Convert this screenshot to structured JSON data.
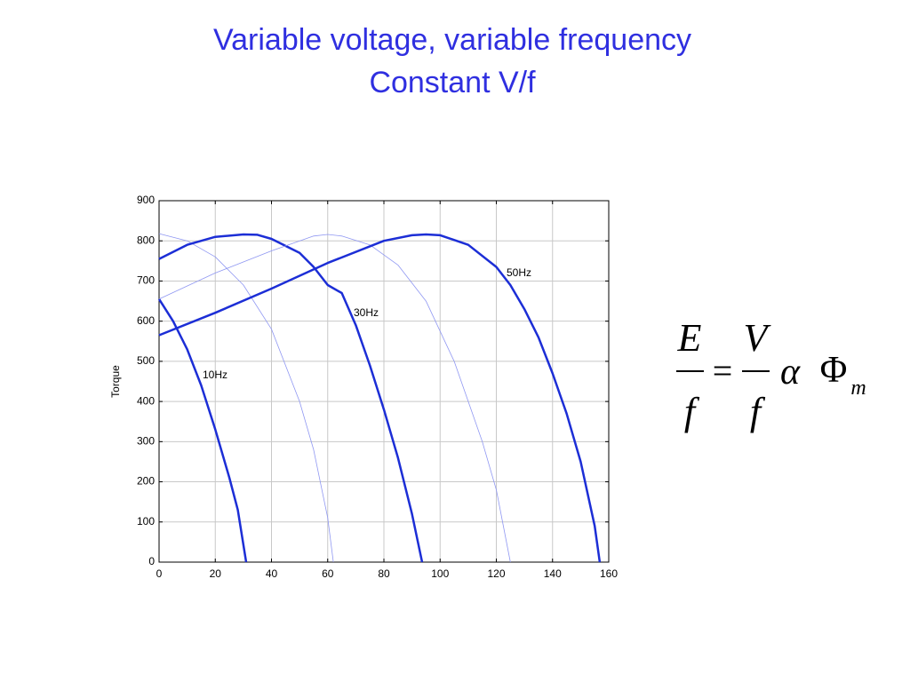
{
  "slide": {
    "title": [
      "Variable voltage, variable frequency",
      "Constant  V/f"
    ]
  },
  "chart_data": {
    "type": "line",
    "ylabel": "Torque",
    "xlim": [
      0,
      160
    ],
    "ylim": [
      0,
      900
    ],
    "xticks": [
      0,
      20,
      40,
      60,
      80,
      100,
      120,
      140,
      160
    ],
    "yticks": [
      0,
      100,
      200,
      300,
      400,
      500,
      600,
      700,
      800,
      900
    ],
    "grid": true,
    "series": [
      {
        "name": "10Hz",
        "color": "#1c2ed6",
        "line_style": "bold",
        "x": [
          0,
          5,
          10,
          15,
          20,
          25,
          28,
          31
        ],
        "values": [
          655,
          600,
          530,
          440,
          330,
          210,
          130,
          0
        ]
      },
      {
        "color": "#8f97f2",
        "line_style": "thin",
        "x": [
          0,
          10,
          20,
          30,
          40,
          50,
          55,
          60,
          62
        ],
        "values": [
          818,
          800,
          760,
          690,
          580,
          400,
          280,
          110,
          0
        ]
      },
      {
        "name": "30Hz",
        "color": "#1c2ed6",
        "line_style": "bold",
        "x": [
          0,
          10,
          20,
          30,
          35,
          40,
          50,
          55,
          60,
          65,
          70,
          75,
          80,
          85,
          90,
          93.6
        ],
        "values": [
          755,
          790,
          810,
          816,
          815,
          805,
          770,
          735,
          690,
          670,
          590,
          490,
          380,
          260,
          120,
          0
        ]
      },
      {
        "color": "#8f97f2",
        "line_style": "thin",
        "x": [
          0,
          20,
          40,
          55,
          60,
          65,
          75,
          85,
          95,
          105,
          115,
          120,
          125
        ],
        "values": [
          655,
          720,
          775,
          812,
          816,
          812,
          790,
          740,
          650,
          500,
          300,
          180,
          0
        ]
      },
      {
        "name": "50Hz",
        "color": "#1c2ed6",
        "line_style": "bold",
        "x": [
          0,
          20,
          40,
          60,
          80,
          90,
          95,
          100,
          110,
          120,
          125,
          130,
          135,
          140,
          145,
          150,
          155,
          156.8
        ],
        "values": [
          565,
          621,
          681,
          745,
          800,
          814,
          816,
          814,
          790,
          735,
          690,
          630,
          560,
          470,
          370,
          250,
          90,
          0
        ]
      }
    ]
  },
  "equation": {
    "lhs_num": "E",
    "lhs_den": "f",
    "equals": "=",
    "rhs_num": "V",
    "rhs_den": "f",
    "proportional": "α",
    "symbol": "Φ",
    "subscript": "m"
  }
}
